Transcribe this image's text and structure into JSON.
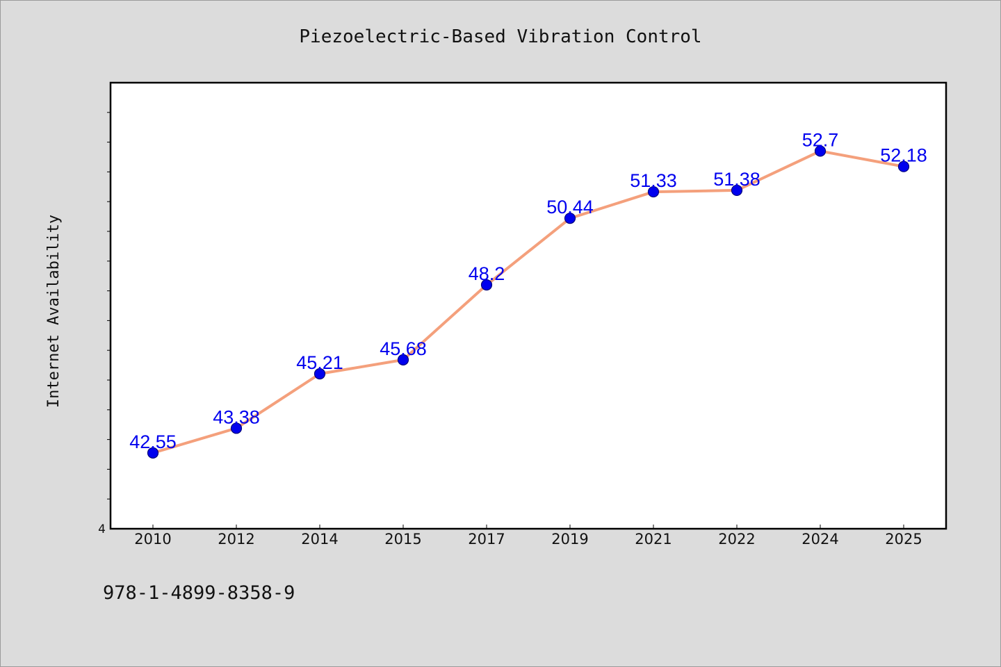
{
  "chart_data": {
    "type": "line",
    "title": "Piezoelectric-Based Vibration Control",
    "xlabel": "",
    "ylabel": "Internet Availability",
    "categories": [
      "2010",
      "2012",
      "2014",
      "2015",
      "2017",
      "2019",
      "2021",
      "2022",
      "2024",
      "2025"
    ],
    "series": [
      {
        "values": [
          42.55,
          43.38,
          45.21,
          45.68,
          48.2,
          50.44,
          51.33,
          51.38,
          52.7,
          52.18
        ]
      }
    ],
    "data_labels": [
      "42.55",
      "43.38",
      "45.21",
      "45.68",
      "48.2",
      "50.44",
      "51.33",
      "51.38",
      "52.7",
      "52.18"
    ],
    "ylim": [
      40,
      55
    ],
    "y_tick_label": "4",
    "grid": false,
    "legend": "none",
    "colors": {
      "line": "#f4a07c",
      "marker": "#0000ee",
      "marker_edge": "#00007a",
      "labels": "#0000ee",
      "page_background": "#dcdcdc",
      "plot_background": "#ffffff"
    }
  },
  "footer": {
    "text": "978-1-4899-8358-9"
  }
}
